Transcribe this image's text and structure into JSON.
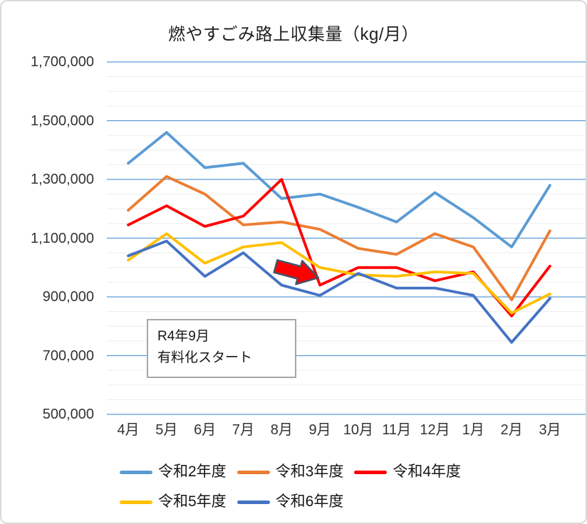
{
  "chart_data": {
    "type": "line",
    "title": "燃やすごみ路上収集量（kg/月）",
    "xlabel": "",
    "ylabel": "",
    "categories": [
      "4月",
      "5月",
      "6月",
      "7月",
      "8月",
      "9月",
      "10月",
      "11月",
      "12月",
      "1月",
      "2月",
      "3月"
    ],
    "series": [
      {
        "name": "令和2年度",
        "color": "#5B9BD5",
        "values": [
          1355000,
          1460000,
          1340000,
          1355000,
          1235000,
          1250000,
          1205000,
          1155000,
          1255000,
          1170000,
          1070000,
          1280000
        ]
      },
      {
        "name": "令和3年度",
        "color": "#ED7D31",
        "values": [
          1195000,
          1310000,
          1250000,
          1145000,
          1155000,
          1130000,
          1065000,
          1045000,
          1115000,
          1070000,
          890000,
          1125000
        ]
      },
      {
        "name": "令和4年度",
        "color": "#FF0000",
        "values": [
          1145000,
          1210000,
          1140000,
          1175000,
          1300000,
          940000,
          1000000,
          1000000,
          955000,
          985000,
          835000,
          1005000
        ]
      },
      {
        "name": "令和5年度",
        "color": "#FFC000",
        "values": [
          1025000,
          1115000,
          1015000,
          1070000,
          1085000,
          1000000,
          975000,
          970000,
          985000,
          980000,
          845000,
          910000
        ]
      },
      {
        "name": "令和6年度",
        "color": "#4472C4",
        "values": [
          1040000,
          1090000,
          970000,
          1050000,
          940000,
          905000,
          980000,
          930000,
          930000,
          905000,
          745000,
          895000
        ]
      }
    ],
    "ylim": [
      500000,
      1700000
    ],
    "y_tick_interval": 200000,
    "y_minor_interval": 50000,
    "y_tick_labels": [
      "1,700,000",
      "1,500,000",
      "1,300,000",
      "1,100,000",
      "900,000",
      "700,000",
      "500,000"
    ],
    "grid": true,
    "legend_position": "bottom",
    "legend_rows": [
      [
        "令和2年度",
        "令和3年度",
        "令和4年度"
      ],
      [
        "令和5年度",
        "令和6年度"
      ]
    ],
    "annotation": {
      "lines": [
        "R4年9月",
        "有料化スタート"
      ]
    },
    "arrow": {
      "meaning": "points-to-reiwa4-september-drop"
    }
  },
  "colors": {
    "major_gridline": "#5B9BD5",
    "minor_gridline": "#EDEDED",
    "annotation_border": "#A7A7A7",
    "arrow_fill": "#FF0000",
    "arrow_outline": "#44546A",
    "chart_border": "#D9D9D9",
    "tick_text": "#333333",
    "title_text": "#1F1F1F"
  }
}
